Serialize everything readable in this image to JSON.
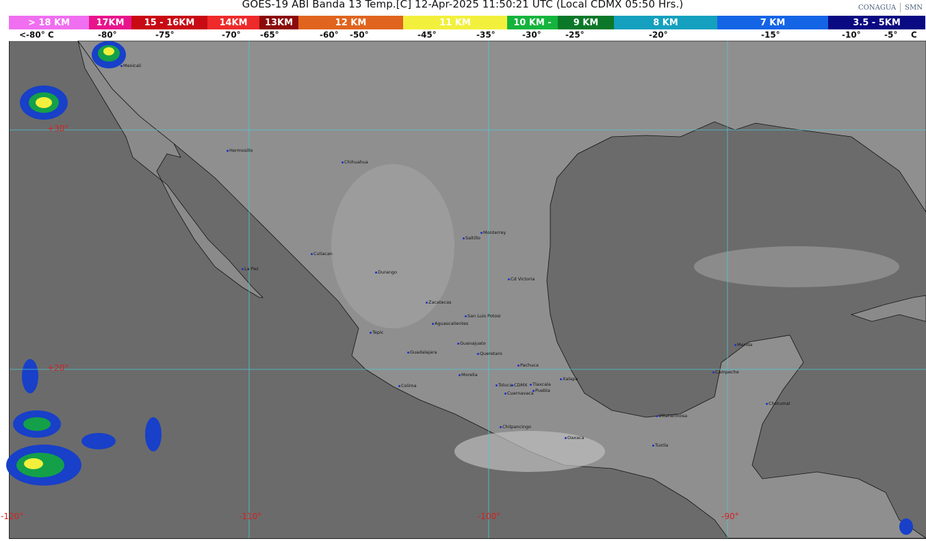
{
  "header": {
    "title": "GOES-19 ABI Banda 13 Temp.[C] 12-Apr-2025 11:50:21 UTC (Local CDMX  05:50 Hrs.)",
    "logos": [
      "CONAGUA",
      "SMN"
    ]
  },
  "legend": {
    "segments": [
      {
        "label": "> 18 KM",
        "color": "#f06ef0"
      },
      {
        "label": "17KM",
        "color": "#e8148c"
      },
      {
        "label": "15 - 16KM",
        "color": "#c80a14"
      },
      {
        "label": "14KM",
        "color": "#ee2a2a"
      },
      {
        "label": "13KM",
        "color": "#8c0a0a"
      },
      {
        "label": "12 KM",
        "color": "#e0641e"
      },
      {
        "label": "11 KM",
        "color": "#f2f03c"
      },
      {
        "label": "10 KM -",
        "color": "#14b43c"
      },
      {
        "label": "9 KM",
        "color": "#0a7828"
      },
      {
        "label": "8 KM",
        "color": "#14a0be"
      },
      {
        "label": "7 KM",
        "color": "#1464e6"
      },
      {
        "label": "3.5 - 5KM",
        "color": "#0a0a82"
      }
    ],
    "temperatures": [
      "<-80° C",
      "-80°",
      "-75°",
      "-70°",
      "-65°",
      "-60°",
      "-50°",
      "-45°",
      "-35°",
      "-30°",
      "-25°",
      "-20°",
      "-15°",
      "-10°",
      "-5°",
      "C"
    ]
  },
  "map": {
    "latitude_labels": [
      "+30°",
      "+20°"
    ],
    "longitude_labels": [
      "-120°",
      "-110°",
      "-100°",
      "-90°"
    ],
    "cities": [
      "Mexicali",
      "Hermosillo",
      "Chihuahua",
      "Culiacan",
      "La Paz",
      "Durango",
      "Saltillo",
      "Monterrey",
      "Cd Victoria",
      "Zacatecas",
      "Aguascalientes",
      "San Luis Potosi",
      "Tepic",
      "Guanajuato",
      "Guadalajara",
      "Queretaro",
      "Pachuca",
      "Morelia",
      "Xalapa",
      "Colima",
      "Toluca",
      "CDMX",
      "Tlaxcala",
      "Puebla",
      "Cuernavaca",
      "Villahermosa",
      "Chilpancingo",
      "Oaxaca",
      "Tuxtla",
      "Merida",
      "Campeche",
      "Chetumal"
    ]
  }
}
